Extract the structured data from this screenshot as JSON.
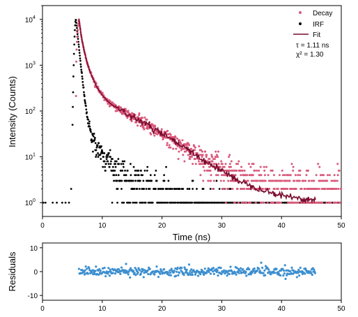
{
  "chart_data": [
    {
      "type": "scatter",
      "yscale": "log",
      "xlabel": "Time (ns)",
      "ylabel": "Intensity (Counts)",
      "xlim": [
        0,
        50
      ],
      "ylim": [
        0.5,
        20000
      ],
      "x_ticks": [
        0,
        10,
        20,
        30,
        40,
        50
      ],
      "y_ticks": [
        {
          "value": 1,
          "base": "10",
          "exp": "0"
        },
        {
          "value": 10,
          "base": "10",
          "exp": "1"
        },
        {
          "value": 100,
          "base": "10",
          "exp": "2"
        },
        {
          "value": 1000,
          "base": "10",
          "exp": "3"
        },
        {
          "value": 10000,
          "base": "10",
          "exp": "4"
        }
      ],
      "grid": false,
      "legend_position": "top-right",
      "legend": [
        {
          "label": "Decay",
          "color": "#d9587a",
          "kind": "dot"
        },
        {
          "label": "IRF",
          "color": "#000000",
          "kind": "dot"
        },
        {
          "label": "Fit",
          "color": "#7a0c2e",
          "kind": "line"
        }
      ],
      "annotations": [
        {
          "id": "tau",
          "text": "τ = 1.11 ns"
        },
        {
          "id": "chi",
          "text": "χ² = 1.30"
        }
      ],
      "series": [
        {
          "name": "Decay",
          "color": "#d9587a",
          "description_of_shape": "rise near 5.6 ns to ~1e4 then multi-exponential decay with Poisson noise, flattening to 1-4 counts",
          "peak_x": 6.1,
          "peak_y": 10000,
          "x_start": 5.6,
          "x_end": 50,
          "baseline_levels": [
            1,
            2,
            3,
            4
          ]
        },
        {
          "name": "IRF",
          "color": "#000000",
          "peak_x": 5.6,
          "peak_y": 10000,
          "baseline_levels": [
            1,
            2,
            3,
            4,
            5
          ]
        },
        {
          "name": "Fit",
          "color": "#7a0c2e",
          "x_start": 6.1,
          "x_end": 45.7,
          "points": [
            [
              6.1,
              10000
            ],
            [
              6.5,
              4200
            ],
            [
              7.0,
              2000
            ],
            [
              7.5,
              1100
            ],
            [
              8.0,
              700
            ],
            [
              9.0,
              350
            ],
            [
              10.0,
              220
            ],
            [
              11.0,
              160
            ],
            [
              12.0,
              125
            ],
            [
              14.0,
              90
            ],
            [
              16.0,
              65
            ],
            [
              18.0,
              45
            ],
            [
              20.0,
              32
            ],
            [
              22.0,
              22
            ],
            [
              24.0,
              15
            ],
            [
              26.0,
              10
            ],
            [
              28.0,
              7
            ],
            [
              30.0,
              5
            ],
            [
              32.0,
              3.5
            ],
            [
              34.0,
              2.6
            ],
            [
              36.0,
              2.1
            ],
            [
              38.0,
              1.7
            ],
            [
              40.0,
              1.45
            ],
            [
              42.0,
              1.3
            ],
            [
              44.0,
              1.2
            ],
            [
              45.7,
              1.15
            ]
          ]
        }
      ]
    },
    {
      "type": "scatter",
      "xlabel": "",
      "ylabel": "Residuals",
      "xlim": [
        0,
        50
      ],
      "ylim": [
        -12,
        12
      ],
      "x_ticks": [
        0,
        10,
        20,
        30,
        40,
        50
      ],
      "y_ticks": [
        -10,
        0,
        10
      ],
      "y_tick_labels": [
        "-10",
        "0",
        "10"
      ],
      "series": [
        {
          "name": "Residuals",
          "color": "#3d8fcf",
          "x_start": 6.1,
          "x_end": 45.7,
          "spread": 2.5
        }
      ]
    }
  ]
}
